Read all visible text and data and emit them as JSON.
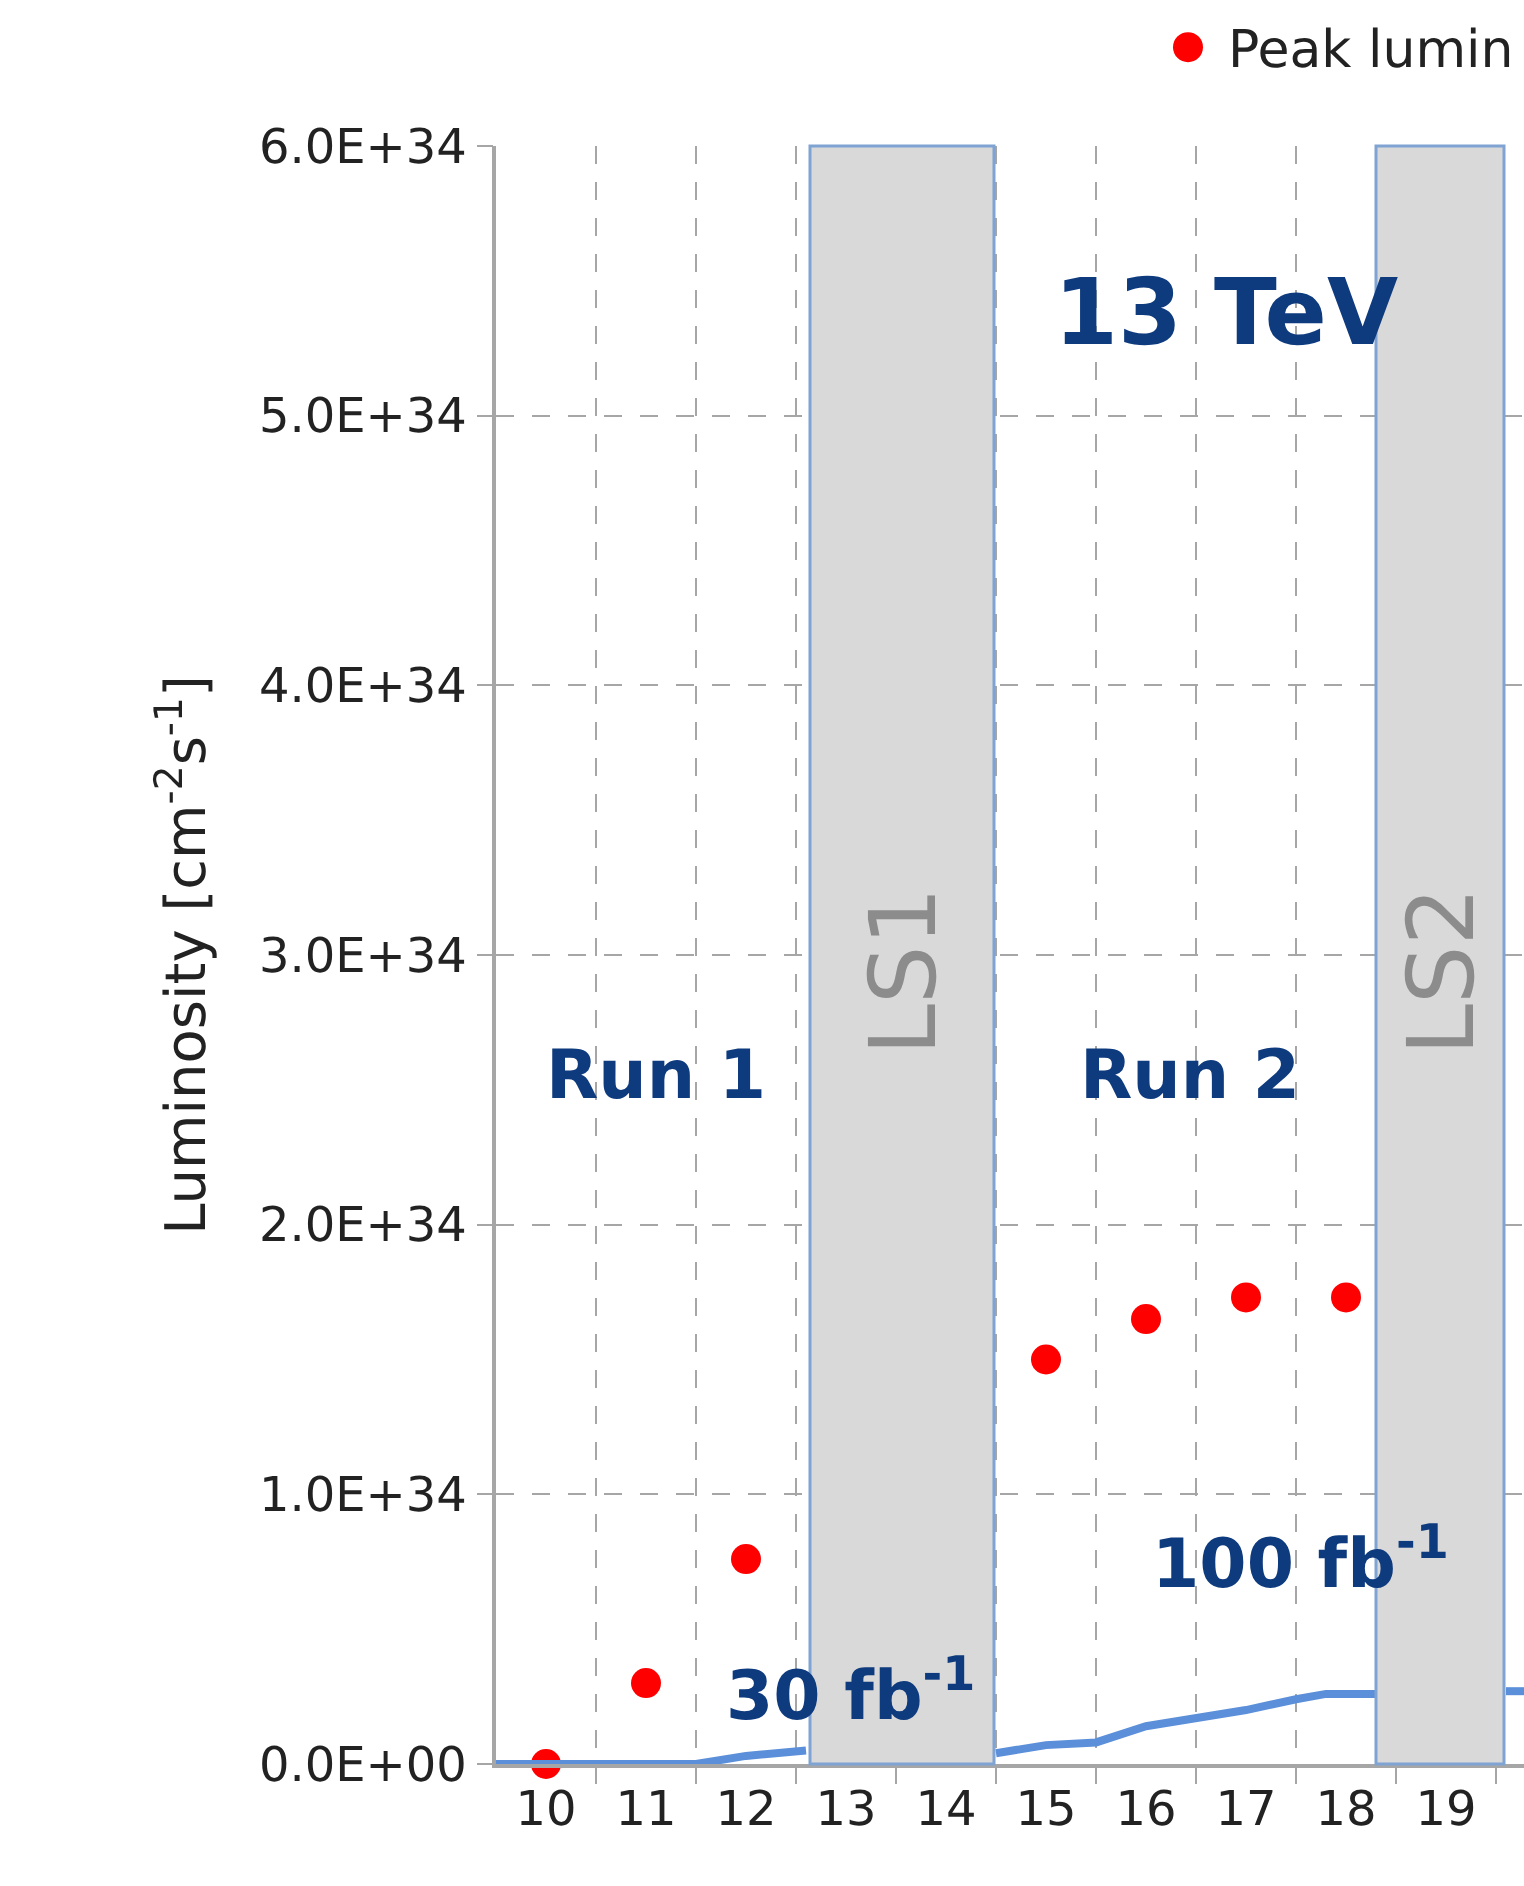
{
  "chart_data": {
    "type": "scatter",
    "ylabel": "Luminosity [cm$^{-2}$s$^{-1}$]",
    "xlim": [
      9.5,
      19.78
    ],
    "xticks": [
      10,
      11,
      12,
      13,
      14,
      15,
      16,
      17,
      18,
      19,
      {
        "value": 10.5,
        "label": null
      },
      {
        "value": 11.5,
        "label": null
      },
      {
        "value": 12.5,
        "label": null
      },
      {
        "value": 13.5,
        "label": null
      },
      {
        "value": 14.5,
        "label": null
      },
      {
        "value": 15.5,
        "label": null
      },
      {
        "value": 16.5,
        "label": null
      },
      {
        "value": 17.5,
        "label": null
      },
      {
        "value": 18.5,
        "label": null
      },
      {
        "value": 19.5,
        "label": null
      }
    ],
    "ylim": [
      0,
      6e+34
    ],
    "yticks": [
      {
        "value": 0,
        "label": "0.0E+00"
      },
      {
        "value": 1e+34,
        "label": "1.0E+34"
      },
      {
        "value": 2e+34,
        "label": "2.0E+34"
      },
      {
        "value": 3e+34,
        "label": "3.0E+34"
      },
      {
        "value": 4e+34,
        "label": "4.0E+34"
      },
      {
        "value": 5e+34,
        "label": "5.0E+34"
      },
      {
        "value": 6e+34,
        "label": "6.0E+34"
      }
    ],
    "grid": true,
    "legend": "top right",
    "series": [
      {
        "name": "Peak lumin",
        "marker": "circle",
        "color": "#ff0000",
        "x": [
          10,
          11,
          12,
          15,
          16,
          17,
          18
        ],
        "values": [
          0,
          3e+33,
          7.6e+33,
          1.5e+34,
          1.65e+34,
          1.73e+34,
          1.73e+34
        ]
      },
      {
        "type": "line",
        "marker": "none",
        "line_style": "solid",
        "color": "#5b8fd9",
        "x": [
          9.5,
          10,
          11,
          11.5,
          12,
          12.6,
          13.5,
          14.5,
          15,
          15.5,
          16,
          17,
          17.5,
          17.8,
          18.3,
          18.9,
          19.6,
          19.78
        ],
        "values": [
          0,
          0,
          0,
          0,
          3e+32,
          5e+32,
          null,
          4e+32,
          7e+32,
          8e+32,
          1.4e+33,
          2e+33,
          2.4e+33,
          2.6e+33,
          2.6e+33,
          null,
          2.7e+33,
          2.7e+33
        ]
      }
    ],
    "bands": [
      {
        "axis": "x",
        "from": 12.64,
        "to": 14.48,
        "label": "LS1",
        "color": "#d9d9d9"
      },
      {
        "axis": "x",
        "from": 18.3,
        "to": 19.58,
        "label": "LS2",
        "color": "#d9d9d9"
      }
    ],
    "annotations": [
      "13 TeV",
      "Run 1",
      "Run 2",
      "30 fb$^{-1}$",
      "100 fb$^{-1}$"
    ]
  }
}
